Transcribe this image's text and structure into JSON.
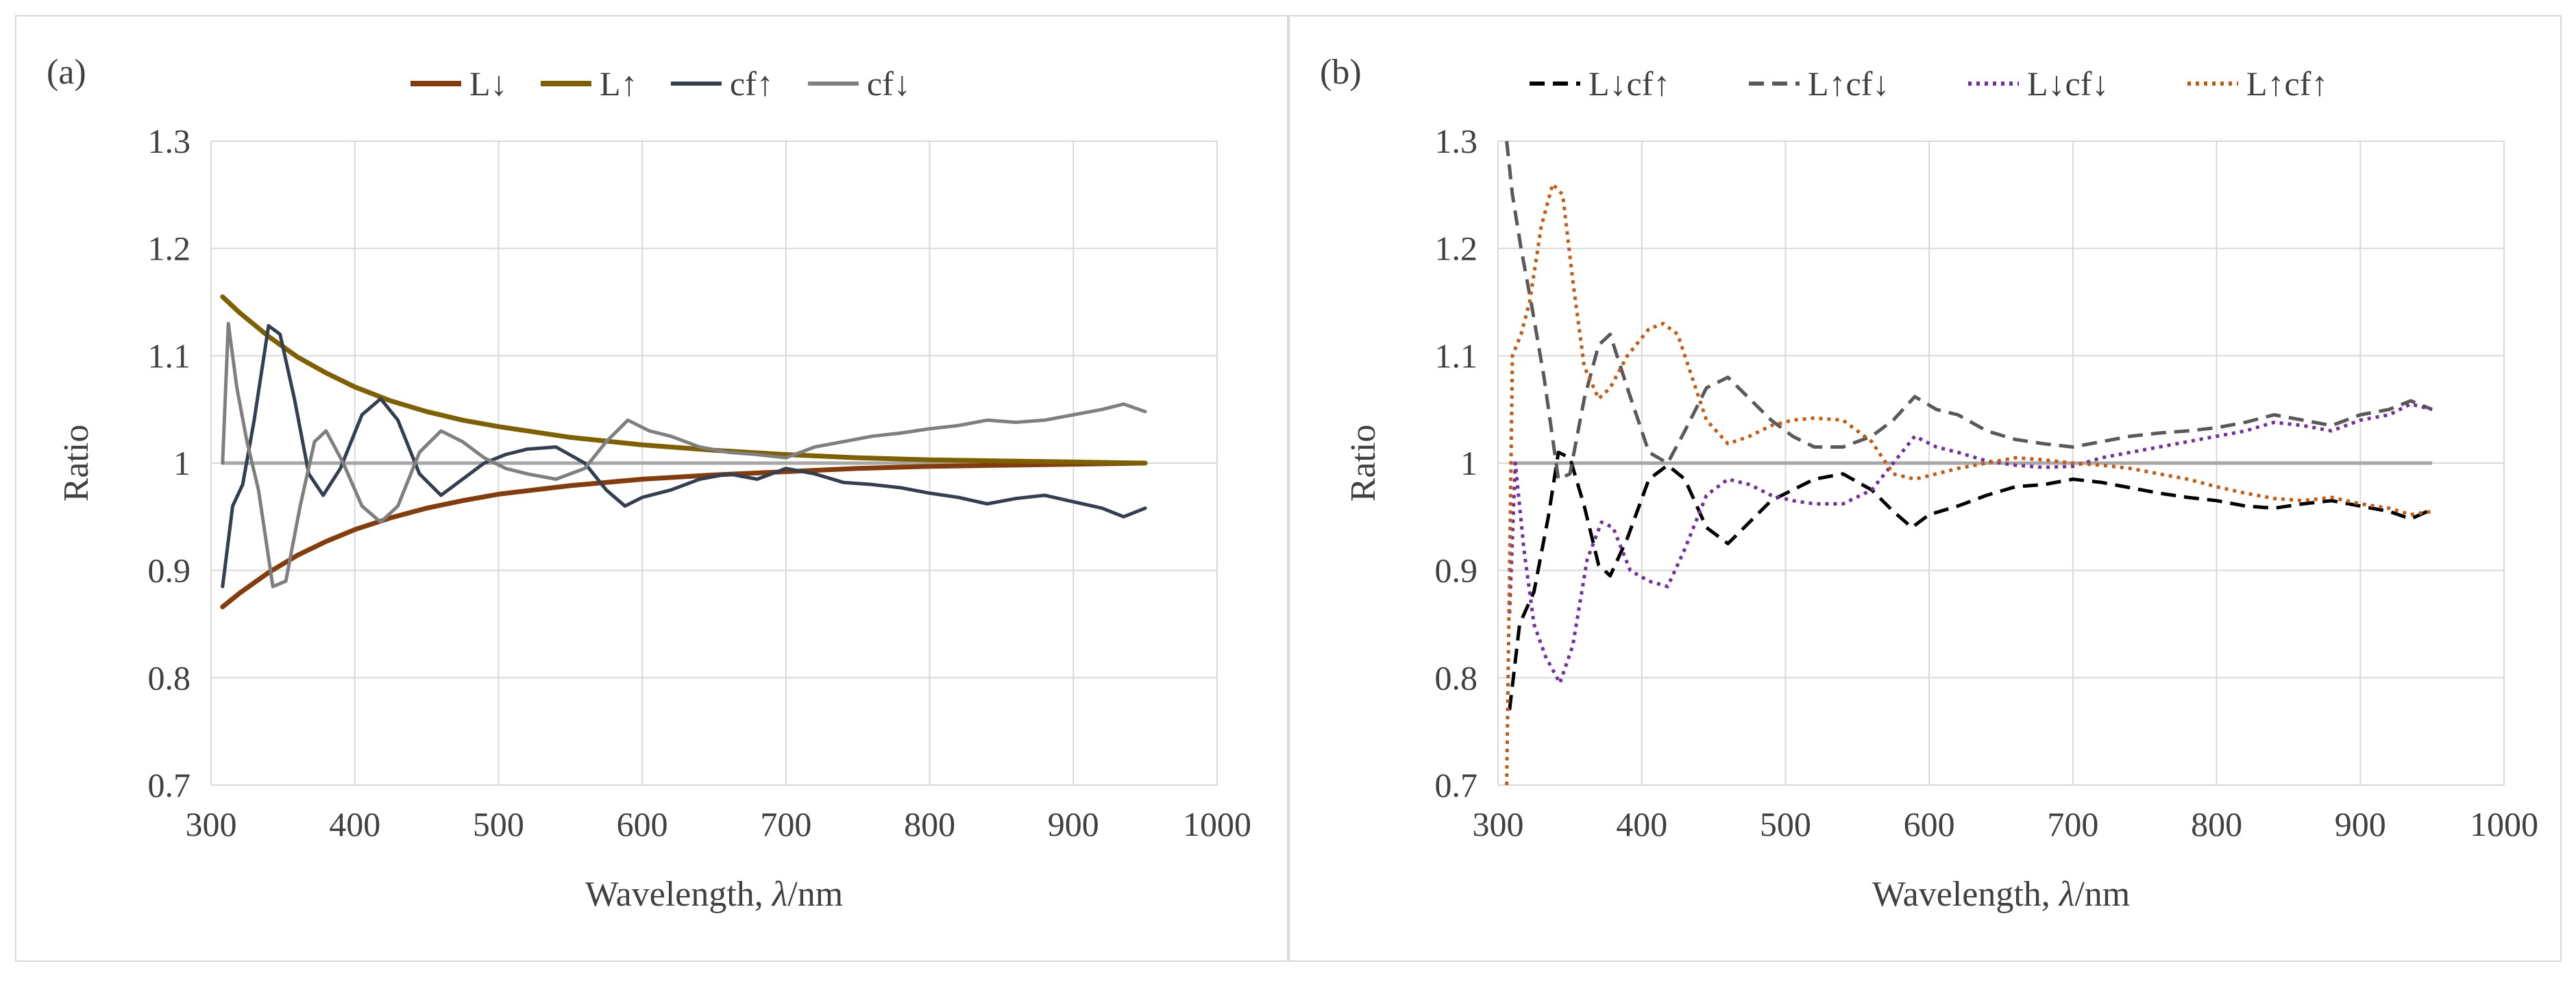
{
  "chart_data": [
    {
      "type": "line",
      "panel_label": "(a)",
      "xlabel_text": "Wavelength, ",
      "xlabel_symbol": "λ",
      "xlabel_unit": "/nm",
      "ylabel": "Ratio",
      "xlim": [
        300,
        1000
      ],
      "ylim": [
        0.7,
        1.3
      ],
      "x_ticks": [
        300,
        400,
        500,
        600,
        700,
        800,
        900,
        1000
      ],
      "y_ticks": [
        0.7,
        0.8,
        0.9,
        1.0,
        1.1,
        1.2,
        1.3
      ],
      "x_tick_labels": [
        "300",
        "400",
        "500",
        "600",
        "700",
        "800",
        "900",
        "1000"
      ],
      "y_tick_labels": [
        "0.7",
        "0.8",
        "0.9",
        "1",
        "1.1",
        "1.2",
        "1.3"
      ],
      "grid": true,
      "legend_position": "top",
      "reference_line": {
        "y": 1.0,
        "color": "#a6a6a6"
      },
      "series": [
        {
          "name": "L↓",
          "color": "#843c0c",
          "style": "solid",
          "width": 7,
          "x": [
            308,
            320,
            340,
            360,
            380,
            400,
            425,
            450,
            475,
            500,
            550,
            600,
            650,
            700,
            750,
            800,
            850,
            900,
            950
          ],
          "y": [
            0.866,
            0.879,
            0.898,
            0.914,
            0.927,
            0.938,
            0.949,
            0.958,
            0.965,
            0.971,
            0.979,
            0.985,
            0.989,
            0.992,
            0.995,
            0.997,
            0.998,
            0.999,
            1.0
          ]
        },
        {
          "name": "L↑",
          "color": "#7f6000",
          "style": "solid",
          "width": 7,
          "x": [
            308,
            320,
            340,
            360,
            380,
            400,
            425,
            450,
            475,
            500,
            550,
            600,
            650,
            700,
            750,
            800,
            850,
            900,
            950
          ],
          "y": [
            1.155,
            1.14,
            1.118,
            1.099,
            1.084,
            1.071,
            1.058,
            1.048,
            1.04,
            1.034,
            1.024,
            1.017,
            1.012,
            1.008,
            1.005,
            1.003,
            1.002,
            1.001,
            1.0
          ]
        },
        {
          "name": "cf↑",
          "color": "#333f50",
          "style": "solid",
          "width": 5,
          "x": [
            308,
            315,
            322,
            330,
            340,
            348,
            358,
            368,
            378,
            390,
            405,
            418,
            430,
            445,
            460,
            475,
            490,
            505,
            520,
            540,
            560,
            575,
            588,
            600,
            620,
            640,
            660,
            680,
            700,
            720,
            740,
            760,
            780,
            800,
            820,
            840,
            860,
            880,
            900,
            920,
            935,
            950
          ],
          "y": [
            0.885,
            0.96,
            0.98,
            1.04,
            1.128,
            1.12,
            1.06,
            0.99,
            0.97,
            0.995,
            1.045,
            1.06,
            1.04,
            0.99,
            0.97,
            0.985,
            1.0,
            1.008,
            1.013,
            1.015,
            1.0,
            0.975,
            0.96,
            0.968,
            0.975,
            0.985,
            0.99,
            0.985,
            0.995,
            0.99,
            0.982,
            0.98,
            0.977,
            0.972,
            0.968,
            0.962,
            0.967,
            0.97,
            0.964,
            0.958,
            0.95,
            0.958
          ]
        },
        {
          "name": "cf↓",
          "color": "#7f7f7f",
          "style": "solid",
          "width": 5,
          "x": [
            308,
            312,
            318,
            325,
            333,
            343,
            352,
            362,
            372,
            380,
            392,
            405,
            418,
            430,
            445,
            460,
            475,
            490,
            505,
            520,
            540,
            560,
            575,
            590,
            605,
            620,
            640,
            660,
            680,
            700,
            720,
            740,
            760,
            780,
            800,
            820,
            840,
            860,
            880,
            900,
            920,
            935,
            950
          ],
          "y": [
            1.0,
            1.13,
            1.07,
            1.02,
            0.975,
            0.885,
            0.89,
            0.96,
            1.02,
            1.03,
            1.0,
            0.96,
            0.945,
            0.96,
            1.01,
            1.03,
            1.02,
            1.005,
            0.995,
            0.99,
            0.985,
            0.995,
            1.02,
            1.04,
            1.03,
            1.025,
            1.015,
            1.01,
            1.008,
            1.005,
            1.015,
            1.02,
            1.025,
            1.028,
            1.032,
            1.035,
            1.04,
            1.038,
            1.04,
            1.045,
            1.05,
            1.055,
            1.048
          ]
        }
      ]
    },
    {
      "type": "line",
      "panel_label": "(b)",
      "xlabel_text": "Wavelength, ",
      "xlabel_symbol": "λ",
      "xlabel_unit": "/nm",
      "ylabel": "Ratio",
      "xlim": [
        300,
        1000
      ],
      "ylim": [
        0.7,
        1.3
      ],
      "x_ticks": [
        300,
        400,
        500,
        600,
        700,
        800,
        900,
        1000
      ],
      "y_ticks": [
        0.7,
        0.8,
        0.9,
        1.0,
        1.1,
        1.2,
        1.3
      ],
      "x_tick_labels": [
        "300",
        "400",
        "500",
        "600",
        "700",
        "800",
        "900",
        "1000"
      ],
      "y_tick_labels": [
        "0.7",
        "0.8",
        "0.9",
        "1",
        "1.1",
        "1.2",
        "1.3"
      ],
      "grid": true,
      "legend_position": "top",
      "reference_line": {
        "y": 1.0,
        "color": "#a6a6a6"
      },
      "series": [
        {
          "name": "L↓cf↑",
          "color": "#000000",
          "style": "dashed",
          "width": 5,
          "x": [
            308,
            315,
            325,
            335,
            342,
            350,
            360,
            370,
            378,
            390,
            405,
            418,
            430,
            445,
            460,
            475,
            490,
            505,
            520,
            540,
            560,
            575,
            588,
            600,
            620,
            640,
            660,
            680,
            700,
            720,
            740,
            760,
            780,
            800,
            820,
            840,
            860,
            880,
            900,
            920,
            935,
            950
          ],
          "y": [
            0.77,
            0.85,
            0.88,
            0.95,
            1.01,
            1.005,
            0.96,
            0.905,
            0.895,
            0.93,
            0.985,
            0.998,
            0.985,
            0.94,
            0.925,
            0.945,
            0.965,
            0.975,
            0.985,
            0.99,
            0.975,
            0.955,
            0.94,
            0.952,
            0.96,
            0.97,
            0.978,
            0.98,
            0.985,
            0.982,
            0.977,
            0.972,
            0.968,
            0.965,
            0.96,
            0.958,
            0.962,
            0.965,
            0.96,
            0.955,
            0.948,
            0.957
          ]
        },
        {
          "name": "L↑cf↓",
          "color": "#595959",
          "style": "dashed",
          "width": 5,
          "x": [
            306,
            310,
            316,
            323,
            332,
            342,
            350,
            360,
            370,
            378,
            390,
            405,
            418,
            430,
            445,
            460,
            475,
            490,
            505,
            520,
            540,
            560,
            575,
            590,
            605,
            620,
            640,
            660,
            680,
            700,
            720,
            740,
            760,
            780,
            800,
            820,
            840,
            860,
            880,
            900,
            920,
            935,
            950
          ],
          "y": [
            1.3,
            1.25,
            1.2,
            1.15,
            1.08,
            0.985,
            0.99,
            1.06,
            1.11,
            1.12,
            1.07,
            1.01,
            1.0,
            1.03,
            1.07,
            1.08,
            1.06,
            1.04,
            1.025,
            1.015,
            1.015,
            1.025,
            1.04,
            1.062,
            1.05,
            1.045,
            1.03,
            1.022,
            1.018,
            1.015,
            1.02,
            1.025,
            1.028,
            1.03,
            1.033,
            1.038,
            1.045,
            1.04,
            1.035,
            1.045,
            1.05,
            1.058,
            1.05
          ]
        },
        {
          "name": "L↓cf↓",
          "color": "#7030a0",
          "style": "dotted",
          "width": 5,
          "x": [
            308,
            312,
            318,
            325,
            333,
            343,
            352,
            362,
            372,
            380,
            392,
            405,
            418,
            430,
            445,
            460,
            475,
            490,
            505,
            520,
            540,
            560,
            575,
            590,
            605,
            620,
            640,
            660,
            680,
            700,
            720,
            740,
            760,
            780,
            800,
            820,
            840,
            860,
            880,
            900,
            920,
            935,
            950
          ],
          "y": [
            0.86,
            1.0,
            0.92,
            0.85,
            0.82,
            0.795,
            0.83,
            0.91,
            0.945,
            0.94,
            0.9,
            0.89,
            0.885,
            0.92,
            0.97,
            0.985,
            0.98,
            0.97,
            0.965,
            0.962,
            0.962,
            0.975,
            1.0,
            1.025,
            1.015,
            1.01,
            1.002,
            0.998,
            0.996,
            0.997,
            1.005,
            1.01,
            1.015,
            1.02,
            1.025,
            1.03,
            1.038,
            1.035,
            1.03,
            1.04,
            1.045,
            1.055,
            1.05
          ]
        },
        {
          "name": "L↑cf↑",
          "color": "#c55a11",
          "style": "dotted",
          "width": 5,
          "x": [
            306,
            310,
            316,
            322,
            330,
            338,
            345,
            352,
            360,
            370,
            378,
            390,
            405,
            415,
            425,
            435,
            445,
            460,
            475,
            490,
            505,
            520,
            540,
            560,
            575,
            590,
            605,
            620,
            640,
            660,
            680,
            700,
            720,
            740,
            760,
            780,
            800,
            820,
            840,
            860,
            880,
            900,
            920,
            935,
            950
          ],
          "y": [
            0.7,
            1.1,
            1.12,
            1.15,
            1.22,
            1.26,
            1.25,
            1.17,
            1.09,
            1.06,
            1.07,
            1.1,
            1.125,
            1.13,
            1.12,
            1.08,
            1.04,
            1.018,
            1.025,
            1.035,
            1.04,
            1.042,
            1.04,
            1.02,
            0.99,
            0.985,
            0.99,
            0.995,
            1.0,
            1.005,
            1.003,
            1.0,
            0.998,
            0.995,
            0.99,
            0.985,
            0.978,
            0.972,
            0.967,
            0.965,
            0.968,
            0.962,
            0.958,
            0.952,
            0.955
          ]
        }
      ]
    }
  ]
}
